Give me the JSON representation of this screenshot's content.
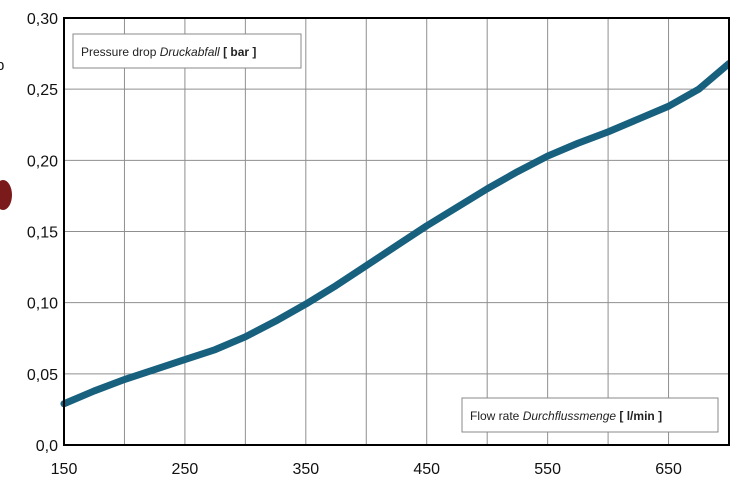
{
  "chart_data": {
    "type": "line",
    "x_ticks": [
      "150",
      "250",
      "350",
      "450",
      "550",
      "650"
    ],
    "y_ticks": [
      "0,0",
      "0,05",
      "0,10",
      "0,15",
      "0,20",
      "0,25",
      "0,30"
    ],
    "xlim": [
      150,
      700
    ],
    "ylim": [
      0,
      0.3
    ],
    "grid": true,
    "series_color": "#17607e",
    "y_legend": {
      "prefix": "Pressure drop ",
      "italic": "Druckabfall",
      "unit": " [ bar ]"
    },
    "x_legend": {
      "prefix": "Flow rate ",
      "italic": "Durchflussmenge",
      "unit": " [ l/min ]"
    },
    "series": [
      {
        "x": [
          150,
          175,
          200,
          225,
          250,
          275,
          300,
          325,
          350,
          375,
          400,
          425,
          450,
          475,
          500,
          525,
          550,
          575,
          600,
          625,
          650,
          675,
          700
        ],
        "y": [
          0.029,
          0.038,
          0.046,
          0.053,
          0.06,
          0.067,
          0.076,
          0.087,
          0.099,
          0.112,
          0.126,
          0.14,
          0.154,
          0.167,
          0.18,
          0.192,
          0.203,
          0.212,
          0.22,
          0.229,
          0.238,
          0.25,
          0.268
        ]
      }
    ]
  }
}
